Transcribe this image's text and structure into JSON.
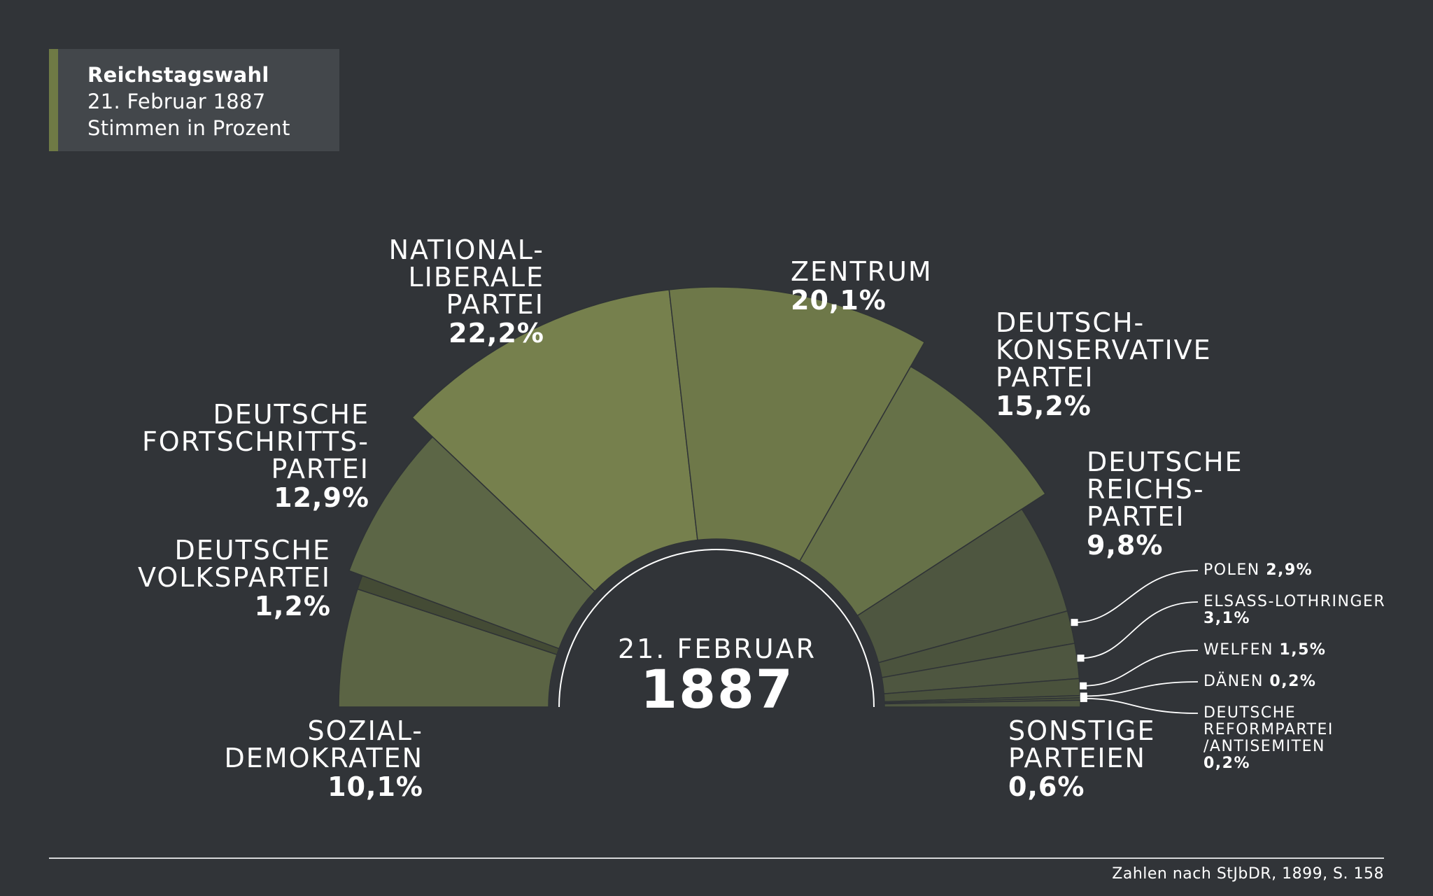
{
  "header": {
    "line1": "Reichstagswahl",
    "line2": "21. Februar 1887",
    "line3": "Stimmen in Prozent"
  },
  "center": {
    "date": "21. FEBRUAR",
    "year": "1887"
  },
  "source": "Zahlen nach StJbDR, 1899, S. 158",
  "colors": {
    "background": "#313438",
    "title_box": "#43474b",
    "accent": "#6f7a45"
  },
  "chart_data": {
    "type": "pie",
    "shape": "semicircle",
    "title": "Reichstagswahl 21. Februar 1887",
    "subtitle": "Stimmen in Prozent",
    "series": [
      {
        "key": "sozialdemokraten",
        "name_lines": [
          "SOZIAL-",
          "DEMOKRATEN"
        ],
        "value": 10.1,
        "value_label": "10,1%",
        "color": "#5b6444"
      },
      {
        "key": "volkspartei",
        "name_lines": [
          "DEUTSCHE",
          "VOLKSPARTEI"
        ],
        "value": 1.2,
        "value_label": "1,2%",
        "color": "#444b35"
      },
      {
        "key": "fortschritt",
        "name_lines": [
          "DEUTSCHE",
          "FORTSCHRITTS-",
          "PARTEI"
        ],
        "value": 12.9,
        "value_label": "12,9%",
        "color": "#5c6646"
      },
      {
        "key": "nationalliberale",
        "name_lines": [
          "NATIONAL-",
          "LIBERALE",
          "PARTEI"
        ],
        "value": 22.2,
        "value_label": "22,2%",
        "color": "#76804d"
      },
      {
        "key": "zentrum",
        "name_lines": [
          "ZENTRUM"
        ],
        "value": 20.1,
        "value_label": "20,1%",
        "color": "#6e7849"
      },
      {
        "key": "konservativ",
        "name_lines": [
          "DEUTSCH-",
          "KONSERVATIVE",
          "PARTEI"
        ],
        "value": 15.2,
        "value_label": "15,2%",
        "color": "#667148"
      },
      {
        "key": "reichspartei",
        "name_lines": [
          "DEUTSCHE",
          "REICHS-",
          "PARTEI"
        ],
        "value": 9.8,
        "value_label": "9,8%",
        "color": "#4e5640"
      },
      {
        "key": "polen",
        "name_lines": [
          "POLEN"
        ],
        "value": 2.9,
        "value_label": "2,9%",
        "color": "#4b533d"
      },
      {
        "key": "elsass",
        "name_lines": [
          "ELSASS-LOTHRINGER"
        ],
        "value": 3.1,
        "value_label": "3,1%",
        "color": "#4e5640"
      },
      {
        "key": "welfen",
        "name_lines": [
          "WELFEN"
        ],
        "value": 1.5,
        "value_label": "1,5%",
        "color": "#4a523c"
      },
      {
        "key": "daenen",
        "name_lines": [
          "DÄNEN"
        ],
        "value": 0.2,
        "value_label": "0,2%",
        "color": "#4e5640"
      },
      {
        "key": "reformpartei",
        "name_lines": [
          "DEUTSCHE",
          "REFORMPARTEI",
          "/ANTISEMITEN"
        ],
        "value": 0.2,
        "value_label": "0,2%",
        "color": "#4a523c"
      },
      {
        "key": "sonstige",
        "name_lines": [
          "SONSTIGE",
          "PARTEIEN"
        ],
        "value": 0.6,
        "value_label": "0,6%",
        "color": "#4e5640"
      }
    ]
  }
}
